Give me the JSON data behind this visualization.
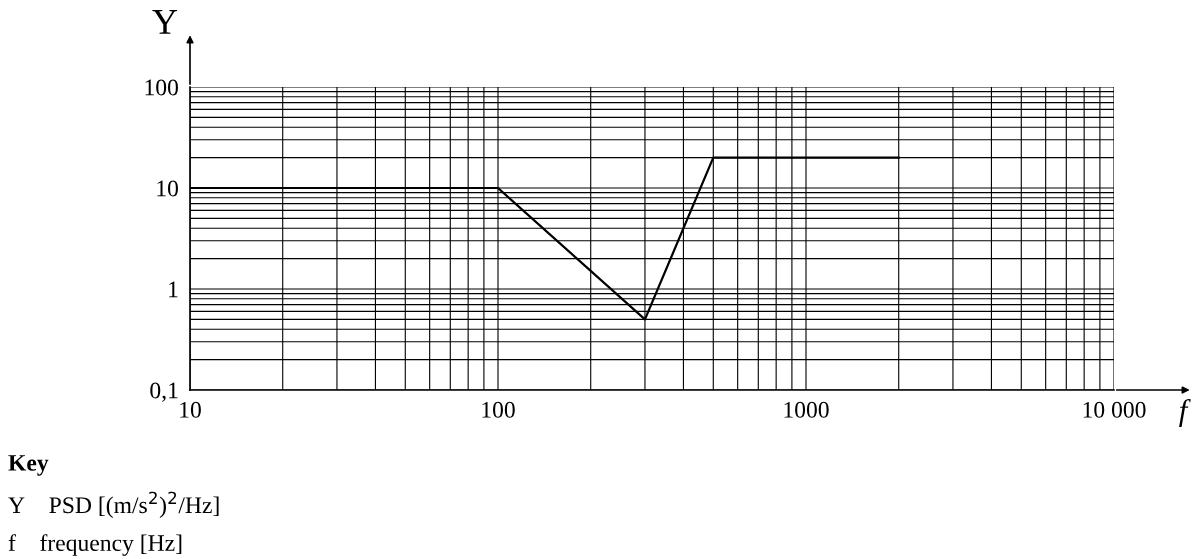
{
  "chart_data": {
    "type": "line",
    "xlabel": "f",
    "ylabel": "Y",
    "log": "xy",
    "grid": true,
    "marker": "none",
    "line_style": "solid",
    "x": [
      10,
      100,
      300,
      500,
      2000
    ],
    "series": [
      {
        "color": "#000000",
        "values": [
          10,
          10,
          0.5,
          20,
          20
        ]
      }
    ],
    "xlim": [
      10,
      10000
    ],
    "ylim": [
      0.1,
      100
    ],
    "xticks": [
      10,
      100,
      1000,
      {
        "value": 10000,
        "label": "10 000"
      }
    ],
    "yticks": [
      {
        "value": 0.1,
        "label": "0,1"
      },
      1,
      10,
      100
    ],
    "annotations": [
      "Key",
      "Y    PSD [(m/s$^{2}$)$^{2}$/Hz]",
      "f    frequency [Hz]"
    ]
  }
}
